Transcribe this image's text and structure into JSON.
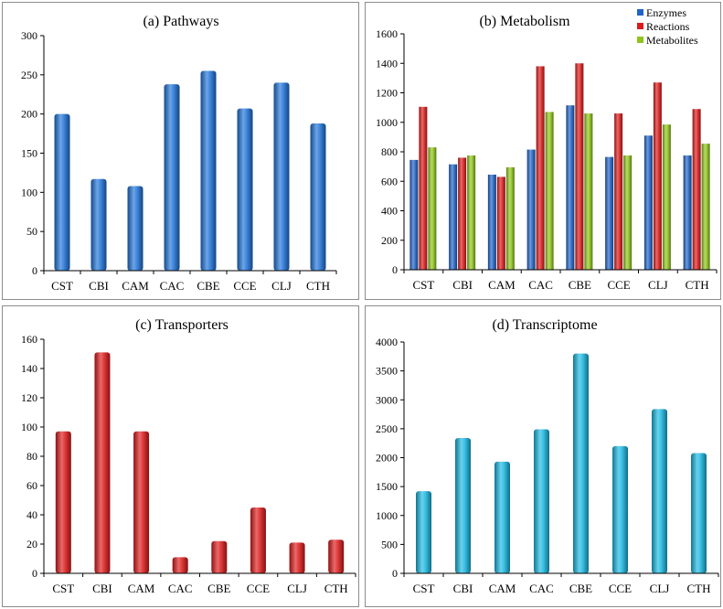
{
  "chart_data": [
    {
      "type": "bar",
      "title": "(a) Pathways",
      "categories": [
        "CST",
        "CBI",
        "CAM",
        "CAC",
        "CBE",
        "CCE",
        "CLJ",
        "CTH"
      ],
      "values": [
        200,
        117,
        108,
        238,
        255,
        207,
        240,
        188
      ],
      "yticks": [
        "0",
        "50",
        "100",
        "150",
        "200",
        "250",
        "300"
      ],
      "ylim": [
        0,
        300
      ],
      "xlabel": "",
      "ylabel": "",
      "color": "#1f73d8",
      "grid": false
    },
    {
      "type": "bar",
      "title": "(b) Metabolism",
      "categories": [
        "CST",
        "CBI",
        "CAM",
        "CAC",
        "CBE",
        "CCE",
        "CLJ",
        "CTH"
      ],
      "series": [
        {
          "name": "Enzymes",
          "color": "#1f63c7",
          "values": [
            745,
            715,
            645,
            815,
            1115,
            765,
            910,
            775
          ]
        },
        {
          "name": "Reactions",
          "color": "#dd1a1a",
          "values": [
            1105,
            760,
            630,
            1380,
            1400,
            1060,
            1270,
            1090
          ]
        },
        {
          "name": "Metabolites",
          "color": "#8ec51a",
          "values": [
            830,
            775,
            695,
            1070,
            1060,
            775,
            985,
            855
          ]
        }
      ],
      "yticks": [
        "0",
        "200",
        "400",
        "600",
        "800",
        "1000",
        "1200",
        "1400",
        "1600"
      ],
      "ylim": [
        0,
        1600
      ],
      "legend": "top-right",
      "xlabel": "",
      "ylabel": "",
      "grid": false
    },
    {
      "type": "bar",
      "title": "(c) Transporters",
      "categories": [
        "CST",
        "CBI",
        "CAM",
        "CAC",
        "CBE",
        "CCE",
        "CLJ",
        "CTH"
      ],
      "values": [
        97,
        151,
        97,
        11,
        22,
        45,
        21,
        23
      ],
      "yticks": [
        "0",
        "20",
        "40",
        "60",
        "80",
        "100",
        "120",
        "140",
        "160"
      ],
      "ylim": [
        0,
        160
      ],
      "xlabel": "",
      "ylabel": "",
      "color": "#dd1a1a",
      "grid": false
    },
    {
      "type": "bar",
      "title": "(d) Transcriptome",
      "categories": [
        "CST",
        "CBI",
        "CAM",
        "CAC",
        "CBE",
        "CCE",
        "CLJ",
        "CTH"
      ],
      "values": [
        1420,
        2340,
        1930,
        2490,
        3800,
        2200,
        2840,
        2080
      ],
      "yticks": [
        "0",
        "500",
        "1000",
        "1500",
        "2000",
        "2500",
        "3000",
        "3500",
        "4000"
      ],
      "ylim": [
        0,
        4000
      ],
      "xlabel": "",
      "ylabel": "",
      "color": "#19b8e2",
      "grid": false
    }
  ]
}
